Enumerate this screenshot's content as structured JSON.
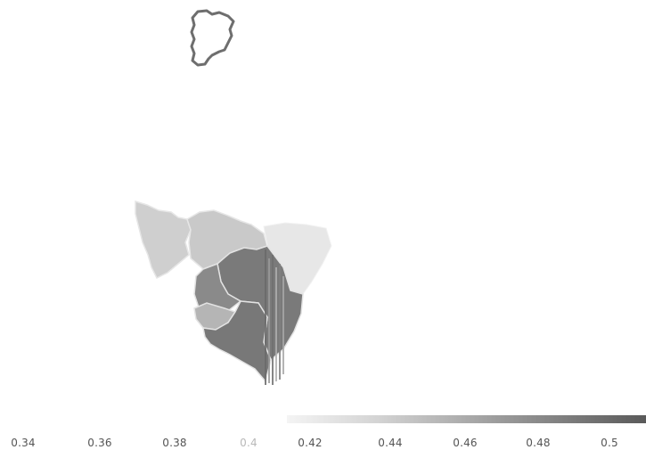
{
  "map": {
    "colors": {
      "background": "#ffffff",
      "inset_outline": "#6e6e6e",
      "region_light": "#c6c6c6",
      "region_dark": "#7c7c7c",
      "region_mid": "#a0a0a0",
      "border": "#e4e4e4"
    }
  },
  "legend": {
    "type": "continuous-gradient",
    "gradient_from": "#f2f2f2",
    "gradient_to": "#5a5a5a",
    "ticks": [
      "0.34",
      "0.36",
      "0.38",
      "0.4",
      "0.42",
      "0.44",
      "0.46",
      "0.48",
      "0.5"
    ]
  }
}
